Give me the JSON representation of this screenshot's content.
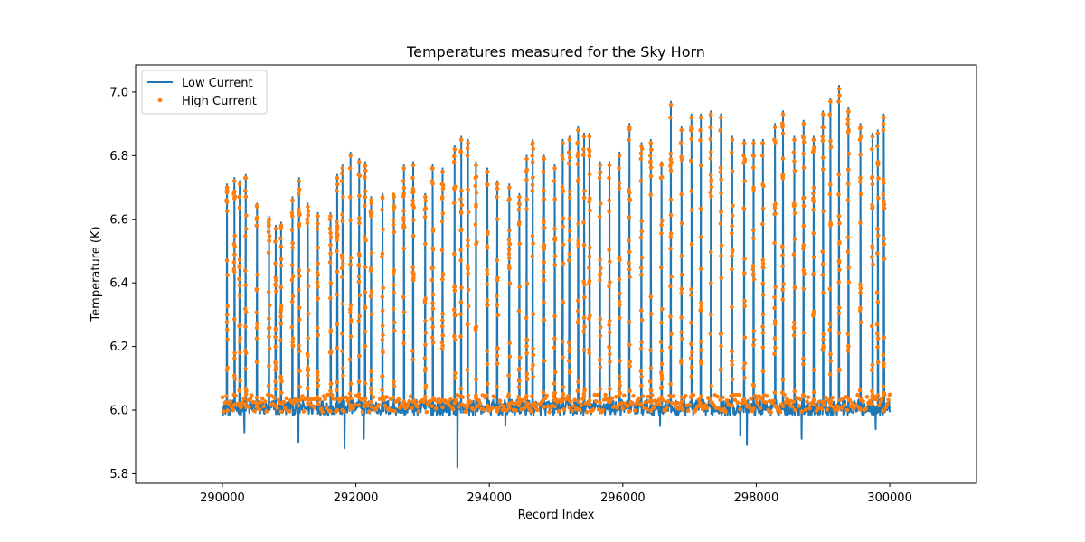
{
  "chart_data": {
    "type": "line",
    "title": "Temperatures measured for the Sky Horn",
    "xlabel": "Record Index",
    "ylabel": "Temperature (K)",
    "xlim": [
      288700,
      301300
    ],
    "ylim": [
      5.77,
      7.085
    ],
    "x_ticks": [
      290000,
      292000,
      294000,
      296000,
      298000,
      300000
    ],
    "x_tick_labels": [
      "290000",
      "292000",
      "294000",
      "296000",
      "298000",
      "300000"
    ],
    "y_ticks": [
      5.8,
      6.0,
      6.2,
      6.4,
      6.6,
      6.8,
      7.0
    ],
    "y_tick_labels": [
      "5.8",
      "6.0",
      "6.2",
      "6.4",
      "6.6",
      "6.8",
      "7.0"
    ],
    "grid": false,
    "legend_position": "top-left",
    "baseline": 6.01,
    "series": [
      {
        "name": "Low Current",
        "style": "line",
        "color": "#1f77b4"
      },
      {
        "name": "High Current",
        "style": "scatter",
        "color": "#ff7f0e"
      }
    ],
    "peaks": {
      "x": [
        290070,
        290180,
        290260,
        290350,
        290520,
        290700,
        290800,
        290880,
        291050,
        291150,
        291280,
        291430,
        291620,
        291720,
        291800,
        291920,
        292050,
        292140,
        292230,
        292400,
        292570,
        292720,
        292860,
        293040,
        293150,
        293300,
        293480,
        293580,
        293680,
        293800,
        293970,
        294120,
        294300,
        294450,
        294560,
        294650,
        294820,
        294980,
        295100,
        295200,
        295330,
        295420,
        295500,
        295660,
        295800,
        295950,
        296100,
        296280,
        296420,
        296580,
        296720,
        296880,
        297030,
        297170,
        297320,
        297470,
        297640,
        297820,
        297960,
        298100,
        298280,
        298400,
        298570,
        298710,
        298860,
        299000,
        299110,
        299240,
        299380,
        299560,
        299740,
        299820,
        299910
      ],
      "y": [
        6.71,
        6.73,
        6.72,
        6.74,
        6.65,
        6.61,
        6.58,
        6.59,
        6.67,
        6.73,
        6.65,
        6.62,
        6.62,
        6.74,
        6.77,
        6.81,
        6.79,
        6.78,
        6.67,
        6.68,
        6.68,
        6.77,
        6.78,
        6.68,
        6.77,
        6.76,
        6.83,
        6.86,
        6.85,
        6.78,
        6.76,
        6.72,
        6.71,
        6.68,
        6.8,
        6.85,
        6.8,
        6.77,
        6.85,
        6.86,
        6.89,
        6.87,
        6.87,
        6.78,
        6.78,
        6.81,
        6.9,
        6.84,
        6.85,
        6.78,
        6.97,
        6.89,
        6.93,
        6.93,
        6.94,
        6.93,
        6.86,
        6.85,
        6.85,
        6.85,
        6.9,
        6.94,
        6.86,
        6.91,
        6.86,
        6.94,
        6.98,
        7.02,
        6.95,
        6.9,
        6.87,
        6.88,
        6.93
      ]
    },
    "dips": {
      "x": [
        290330,
        291140,
        291830,
        292120,
        293520,
        294240,
        296560,
        297760,
        297860,
        298680,
        299790
      ],
      "y": [
        5.93,
        5.9,
        5.88,
        5.91,
        5.82,
        5.95,
        5.95,
        5.92,
        5.89,
        5.91,
        5.94
      ]
    }
  }
}
